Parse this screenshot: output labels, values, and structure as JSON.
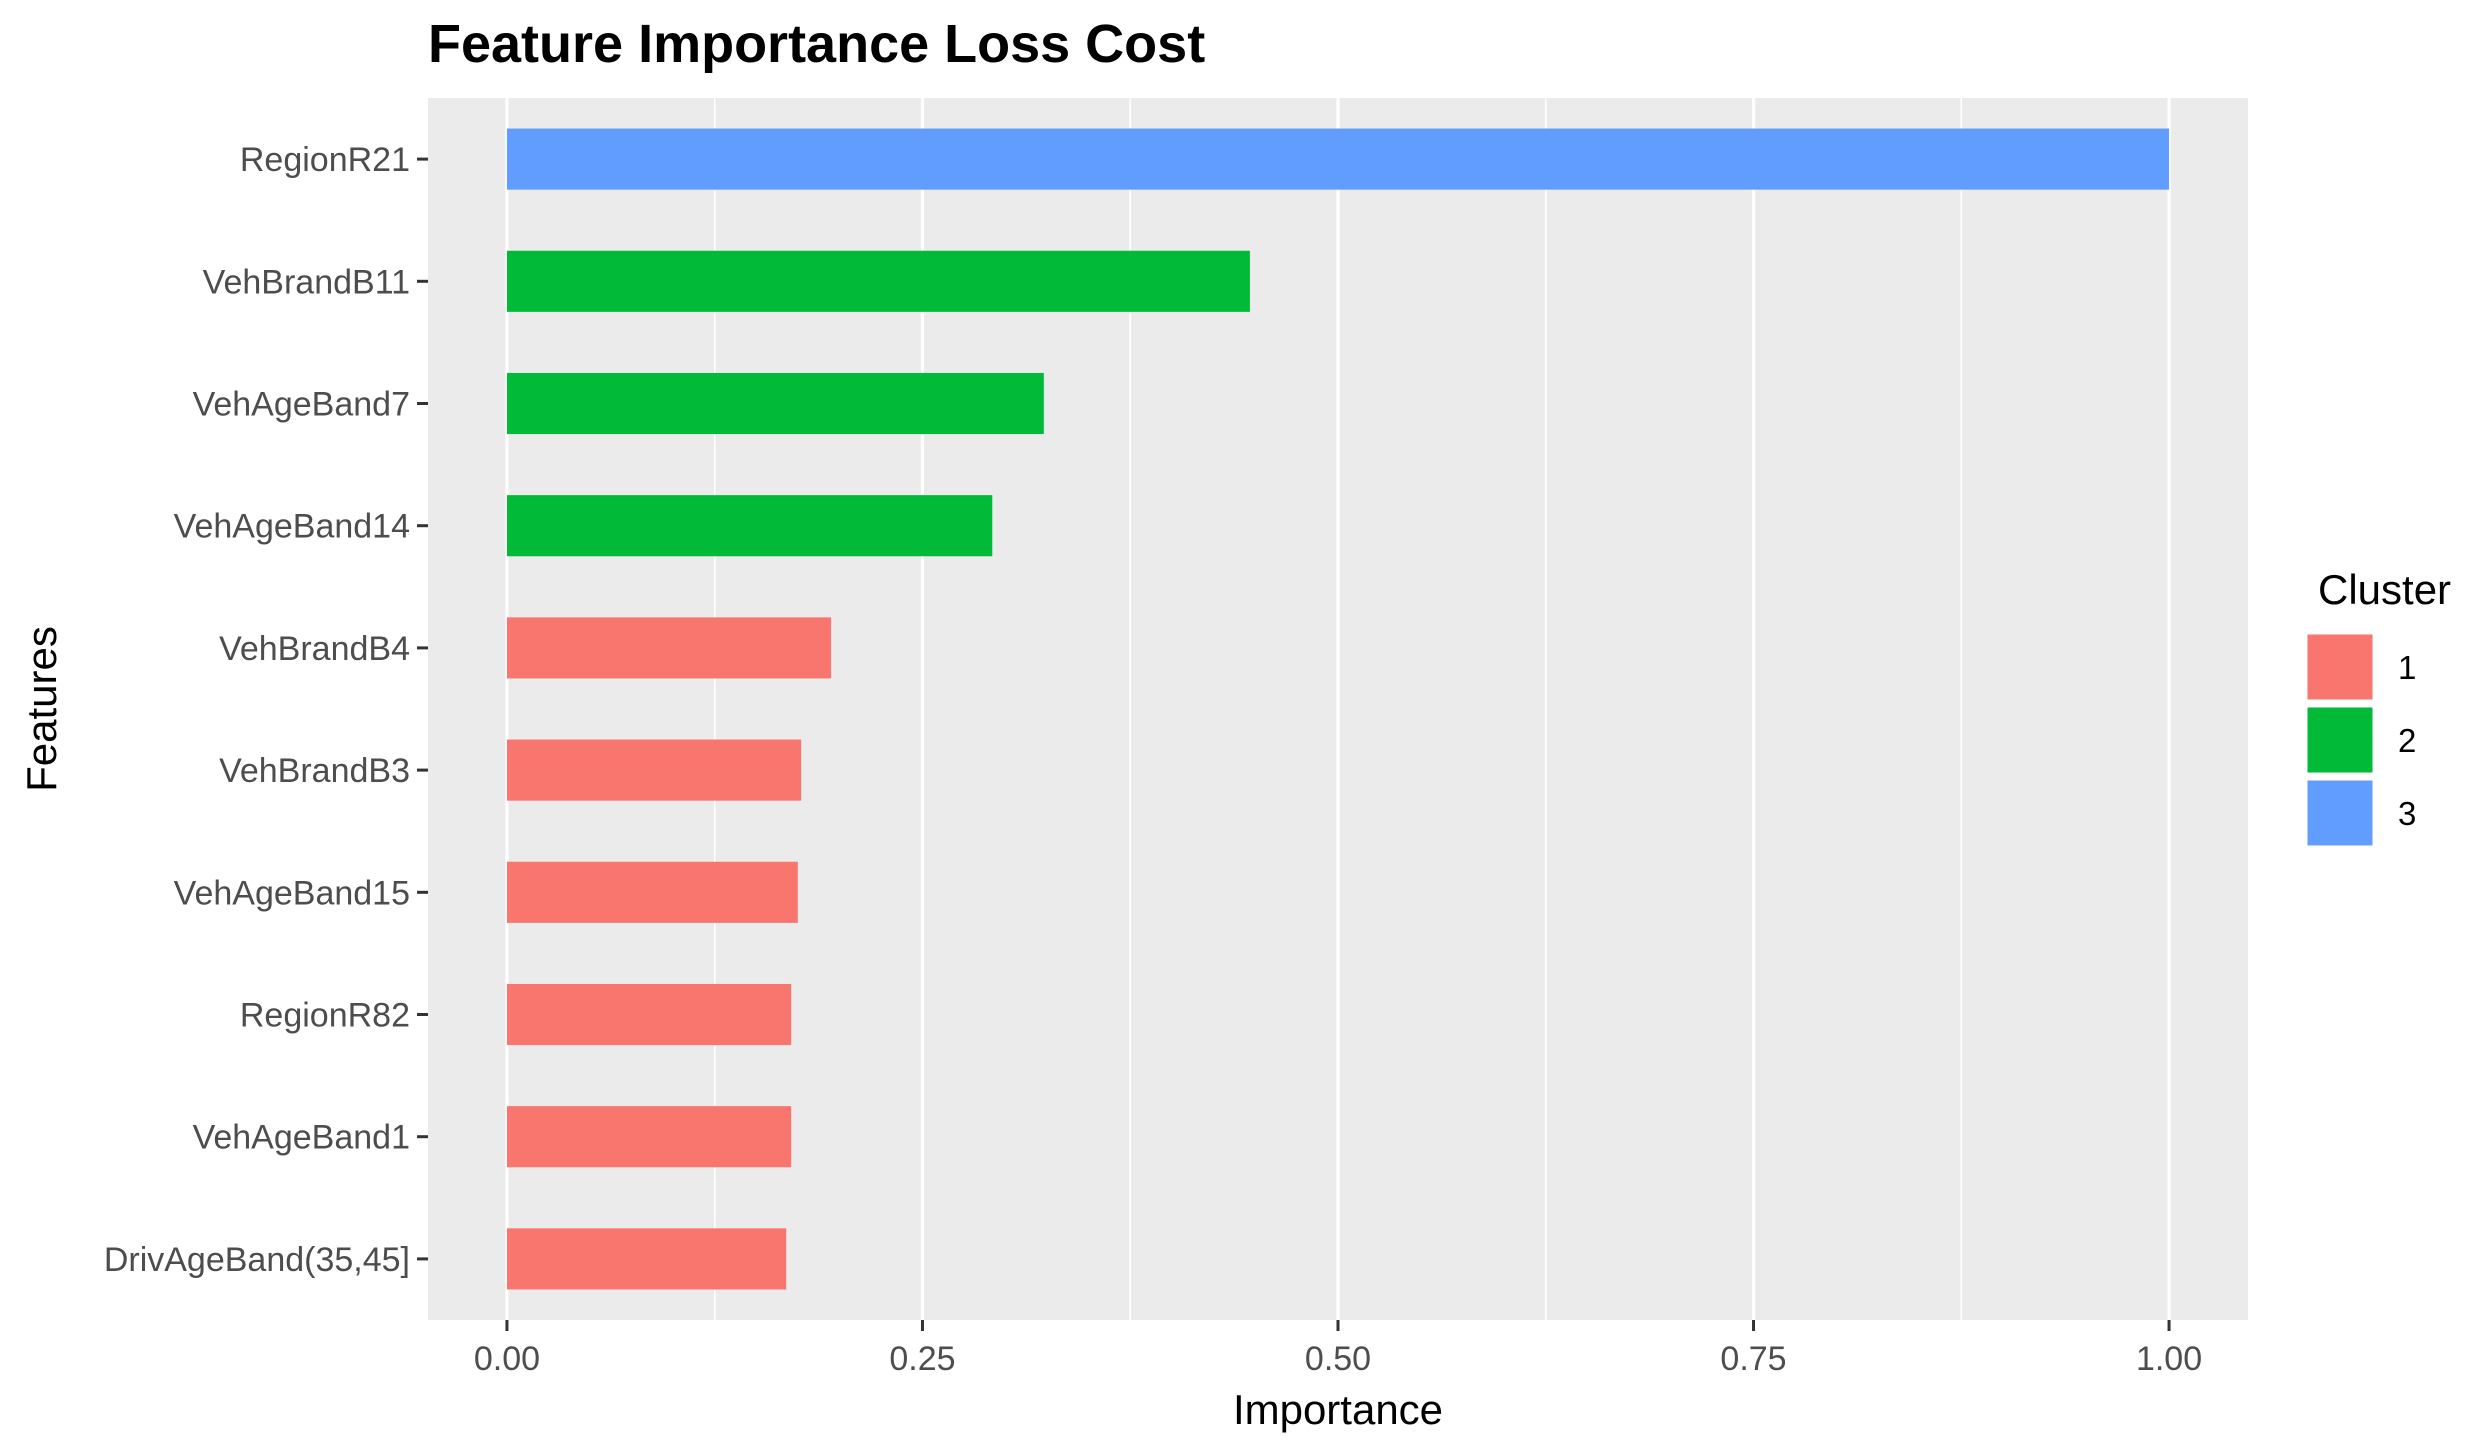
{
  "chart_data": {
    "type": "bar",
    "orientation": "horizontal",
    "title": "Feature Importance Loss Cost",
    "xlabel": "Importance",
    "ylabel": "Features",
    "xlim": [
      -0.0475,
      1.0475
    ],
    "x_ticks": [
      0,
      0.25,
      0.5,
      0.75,
      1.0
    ],
    "x_tick_labels": [
      "0.00",
      "0.25",
      "0.50",
      "0.75",
      "1.00"
    ],
    "grid": true,
    "background": "#ebebeb",
    "legend": {
      "title": "Cluster",
      "position": "right",
      "entries": [
        {
          "label": "1",
          "color": "#f8766d"
        },
        {
          "label": "2",
          "color": "#00ba38"
        },
        {
          "label": "3",
          "color": "#619cff"
        }
      ]
    },
    "categories": [
      "RegionR21",
      "VehBrandB11",
      "VehAgeBand7",
      "VehAgeBand14",
      "VehBrandB4",
      "VehBrandB3",
      "VehAgeBand15",
      "RegionR82",
      "VehAgeBand1",
      "DrivAgeBand(35,45]"
    ],
    "values": [
      1.0,
      0.447,
      0.323,
      0.292,
      0.195,
      0.177,
      0.175,
      0.171,
      0.171,
      0.168
    ],
    "clusters": [
      "3",
      "2",
      "2",
      "2",
      "1",
      "1",
      "1",
      "1",
      "1",
      "1"
    ]
  }
}
